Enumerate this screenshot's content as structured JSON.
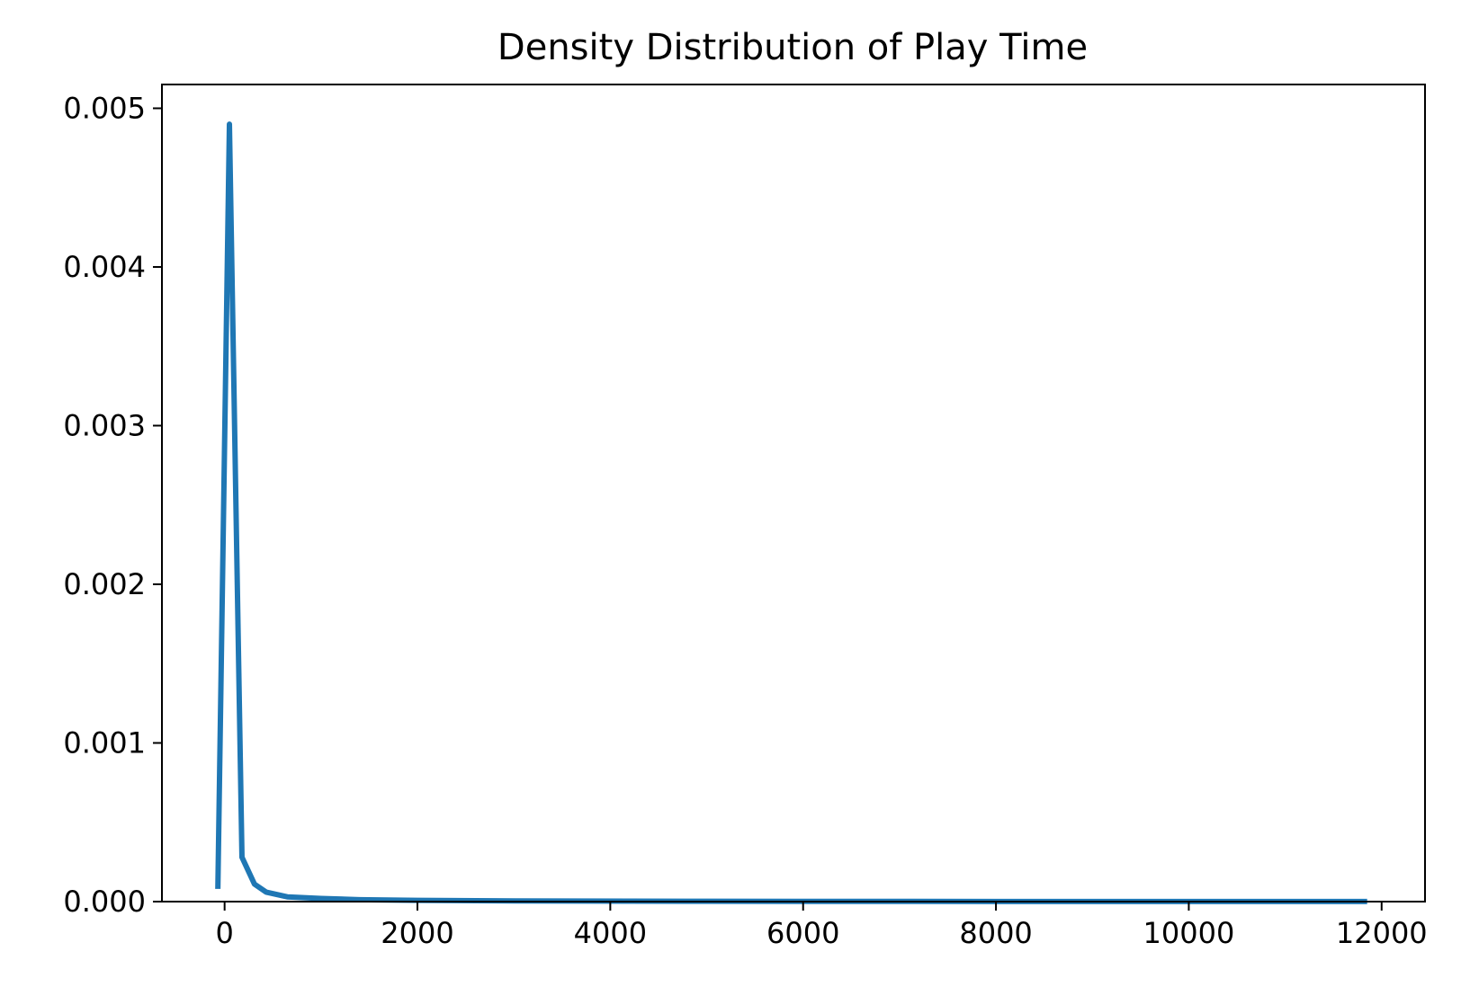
{
  "chart_data": {
    "type": "line",
    "title": "Density Distribution of Play Time",
    "xlabel": "",
    "ylabel": "",
    "xlim": [
      -650,
      12450
    ],
    "ylim": [
      0,
      0.00515
    ],
    "grid": false,
    "legend": "none",
    "line_color": "#1f77b4",
    "x_ticks": [
      0,
      2000,
      4000,
      6000,
      8000,
      10000,
      12000
    ],
    "x_tick_labels": [
      "0",
      "2000",
      "4000",
      "6000",
      "8000",
      "10000",
      "12000"
    ],
    "y_ticks": [
      0,
      0.001,
      0.002,
      0.003,
      0.004,
      0.005
    ],
    "y_tick_labels": [
      "0.000",
      "0.001",
      "0.002",
      "0.003",
      "0.004",
      "0.005"
    ],
    "series": [
      {
        "name": "Play Time",
        "x": [
          -70,
          50,
          180,
          310,
          430,
          650,
          1000,
          1400,
          2000,
          3000,
          5000,
          8000,
          11850
        ],
        "y": [
          8e-05,
          0.0049,
          0.00028,
          0.00011,
          6e-05,
          3e-05,
          2e-05,
          1.2e-05,
          8e-06,
          4e-06,
          2e-06,
          1e-06,
          5e-07
        ]
      }
    ]
  }
}
